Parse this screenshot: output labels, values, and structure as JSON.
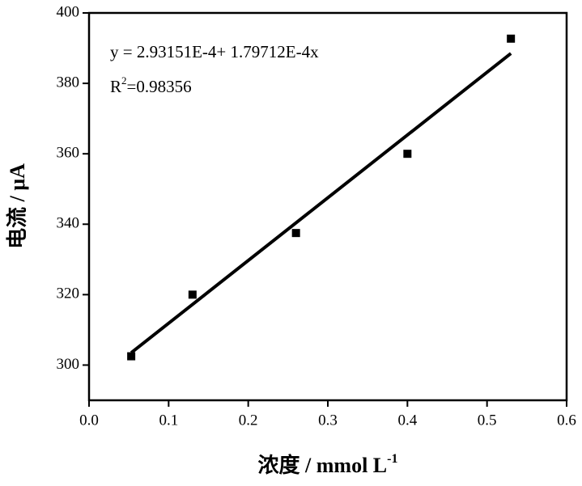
{
  "chart_data": {
    "type": "scatter",
    "x_label": {
      "base": "浓度 / mmol L",
      "sup": "-1"
    },
    "y_label": "电流 / μA",
    "annotations": {
      "equation": "y = 2.93151E-4+ 1.79712E-4x",
      "r2": {
        "base": "R",
        "sup": "2",
        "rest": "=0.98356"
      }
    },
    "series": [
      {
        "kind": "points",
        "color": "#000000",
        "x": [
          0.053,
          0.13,
          0.26,
          0.4,
          0.53
        ],
        "values": [
          302.5,
          320,
          337.5,
          360,
          392.7
        ]
      },
      {
        "kind": "line",
        "color": "#000000",
        "x": [
          0.053,
          0.53
        ],
        "values": [
          303.5,
          388.5
        ]
      }
    ],
    "xlim": [
      0,
      0.6
    ],
    "ylim": [
      290,
      400
    ],
    "xticks": [
      {
        "value": 0,
        "label": "0.0"
      },
      0.1,
      0.2,
      0.3,
      0.4,
      0.5,
      0.6
    ],
    "yticks": [
      300,
      320,
      340,
      360,
      380,
      400
    ]
  }
}
